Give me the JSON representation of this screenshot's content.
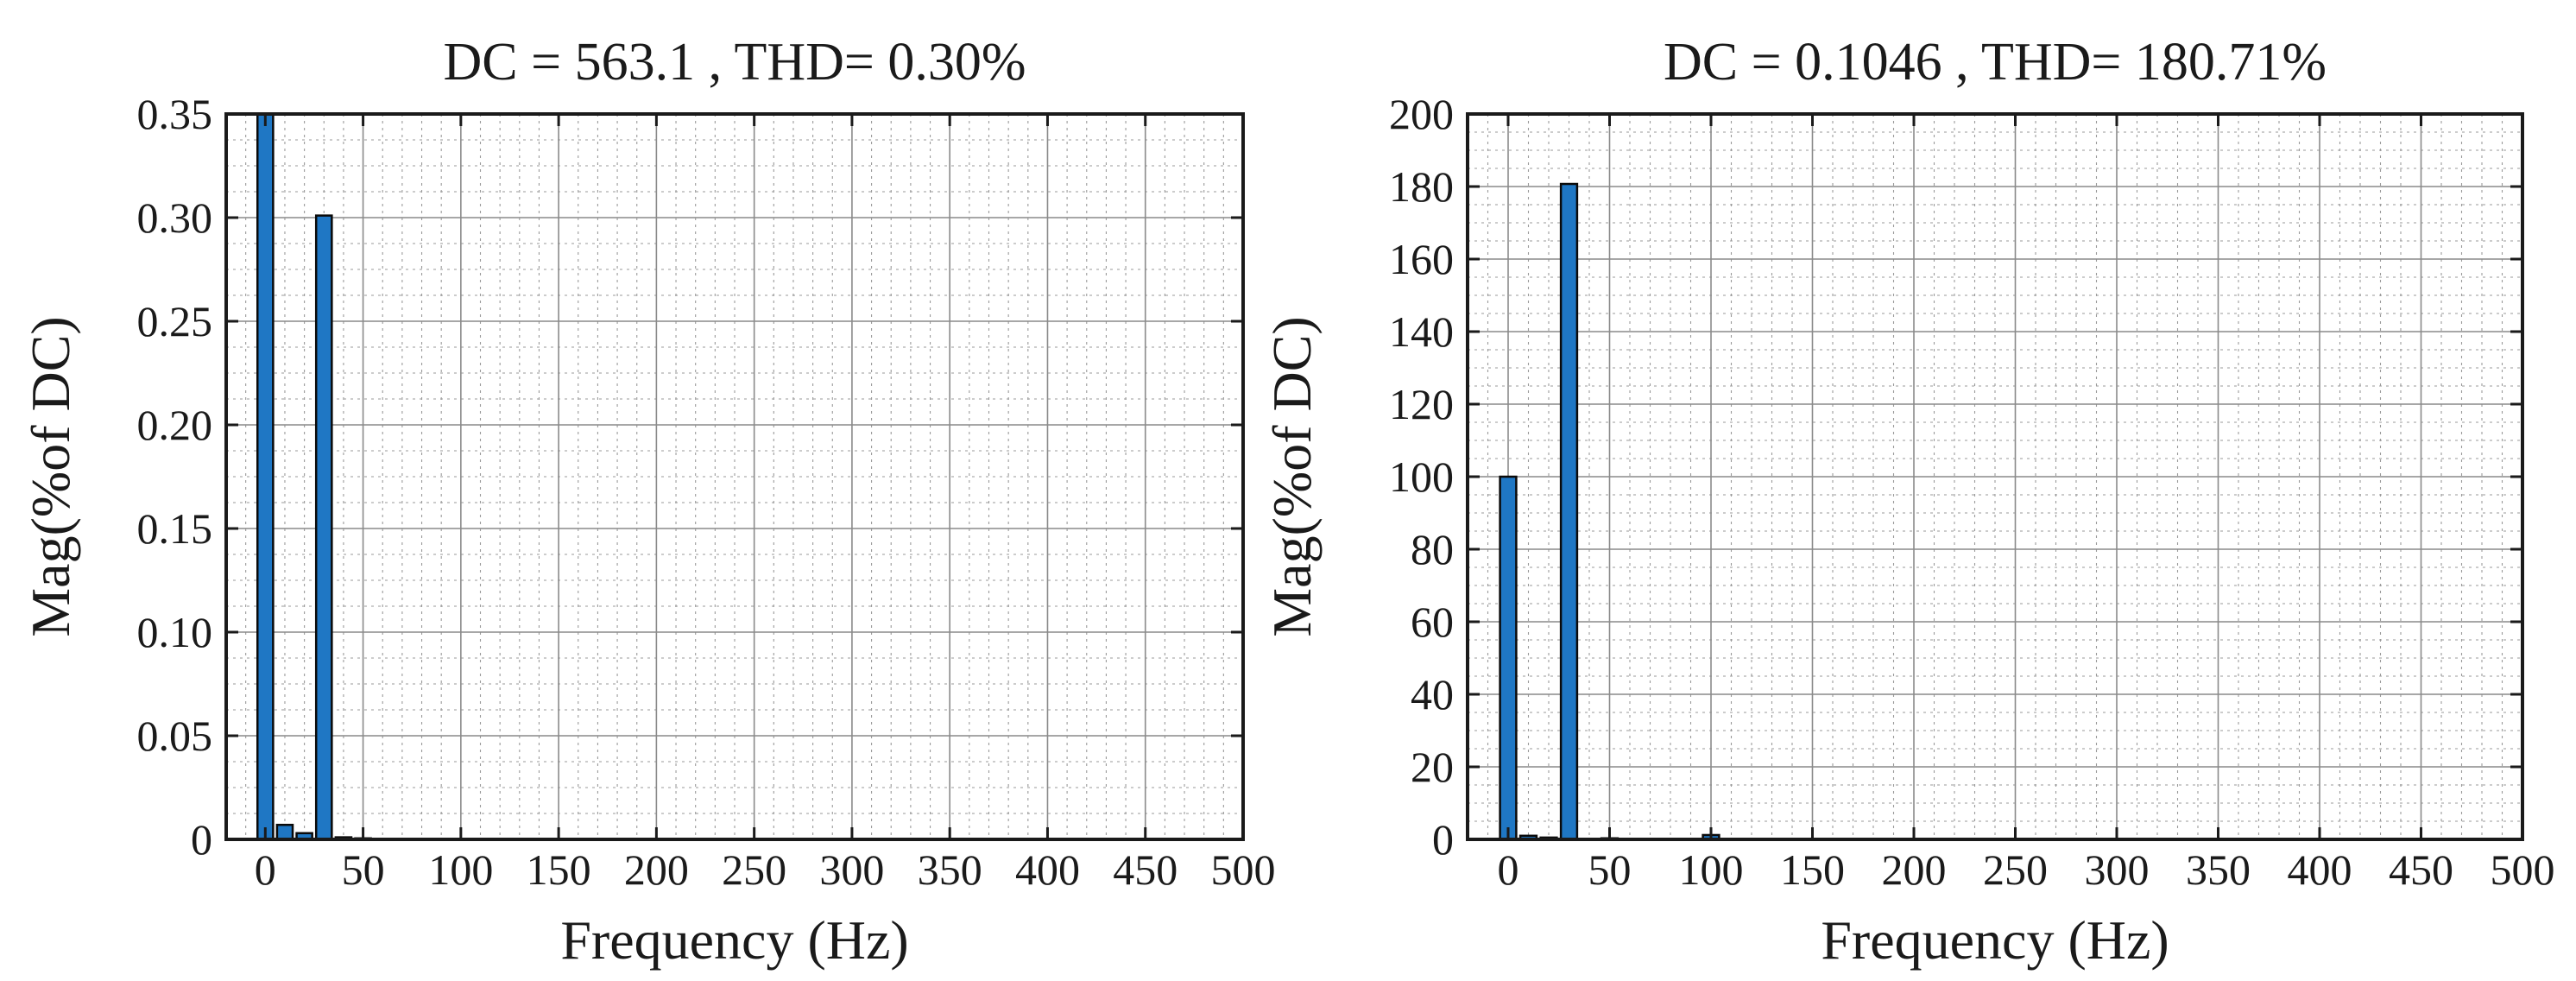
{
  "colors": {
    "bar": "#1f77c4",
    "axis": "#1a1a1a"
  },
  "chart_data": [
    {
      "type": "bar",
      "title": "DC = 563.1 , THD= 0.30%",
      "xlabel": "Frequency (Hz)",
      "ylabel": "Mag(%of DC)",
      "xlim": [
        -20,
        500
      ],
      "ylim": [
        0,
        0.35
      ],
      "xticks": [
        0,
        50,
        100,
        150,
        200,
        250,
        300,
        350,
        400,
        450,
        500
      ],
      "yticks": [
        0,
        0.05,
        0.1,
        0.15,
        0.2,
        0.25,
        0.3,
        0.35
      ],
      "ytick_labels": [
        "0",
        "0.05",
        "0.10",
        "0.15",
        "0.20",
        "0.25",
        "0.30",
        "0.35"
      ],
      "grid": true,
      "x": [
        0,
        10,
        20,
        30,
        40,
        50,
        60
      ],
      "values": [
        0.35,
        0.007,
        0.003,
        0.301,
        0.001,
        0.0005,
        0.0003
      ]
    },
    {
      "type": "bar",
      "title": "DC = 0.1046 , THD= 180.71%",
      "xlabel": "Frequency (Hz)",
      "ylabel": "Mag(%of DC)",
      "xlim": [
        -20,
        500
      ],
      "ylim": [
        0,
        200
      ],
      "xticks": [
        0,
        50,
        100,
        150,
        200,
        250,
        300,
        350,
        400,
        450,
        500
      ],
      "yticks": [
        0,
        20,
        40,
        60,
        80,
        100,
        120,
        140,
        160,
        180,
        200
      ],
      "ytick_labels": [
        "0",
        "20",
        "40",
        "60",
        "80",
        "100",
        "120",
        "140",
        "160",
        "180",
        "200"
      ],
      "grid": true,
      "x": [
        0,
        10,
        20,
        30,
        50,
        100
      ],
      "values": [
        100,
        1,
        0.5,
        180.71,
        0.3,
        1.2
      ]
    }
  ]
}
